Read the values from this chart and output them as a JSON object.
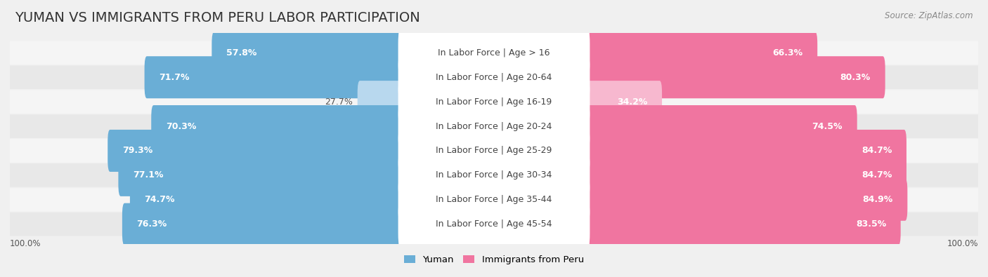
{
  "title": "YUMAN VS IMMIGRANTS FROM PERU LABOR PARTICIPATION",
  "source": "Source: ZipAtlas.com",
  "categories": [
    "In Labor Force | Age > 16",
    "In Labor Force | Age 20-64",
    "In Labor Force | Age 16-19",
    "In Labor Force | Age 20-24",
    "In Labor Force | Age 25-29",
    "In Labor Force | Age 30-34",
    "In Labor Force | Age 35-44",
    "In Labor Force | Age 45-54"
  ],
  "yuman_values": [
    57.8,
    71.7,
    27.7,
    70.3,
    79.3,
    77.1,
    74.7,
    76.3
  ],
  "peru_values": [
    66.3,
    80.3,
    34.2,
    74.5,
    84.7,
    84.7,
    84.9,
    83.5
  ],
  "yuman_color": "#6aaed6",
  "peru_color": "#f075a0",
  "yuman_color_light": "#b8d8ee",
  "peru_color_light": "#f7b8cf",
  "background_color": "#f0f0f0",
  "row_bg_color": "#e8e8e8",
  "row_bg_color2": "#f5f5f5",
  "legend_yuman": "Yuman",
  "legend_peru": "Immigrants from Peru",
  "max_value": 100.0,
  "title_fontsize": 14,
  "label_fontsize": 9,
  "value_fontsize": 9
}
